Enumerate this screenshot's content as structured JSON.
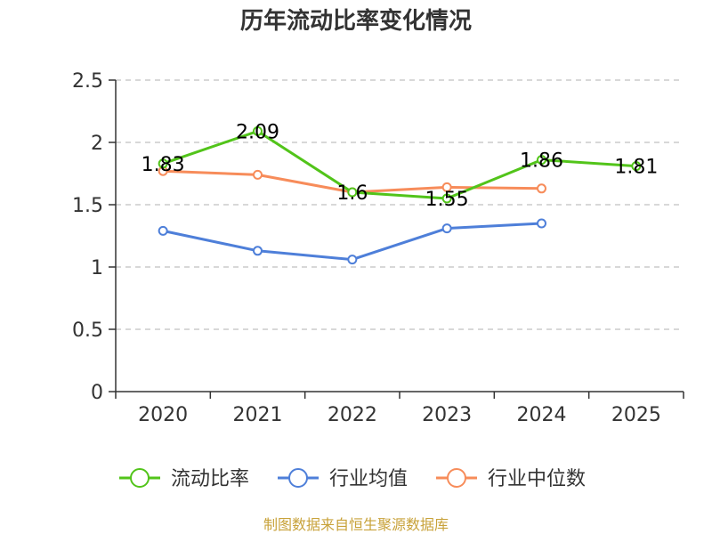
{
  "chart_data": {
    "type": "line",
    "title": "历年流动比率变化情况",
    "categories": [
      "2020",
      "2021",
      "2022",
      "2023",
      "2024",
      "2025"
    ],
    "ylim": [
      0,
      2.5
    ],
    "yticks": [
      "0",
      "0.5",
      "1",
      "1.5",
      "2",
      "2.5"
    ],
    "ytick_values": [
      0,
      0.5,
      1,
      1.5,
      2,
      2.5
    ],
    "grid": true,
    "legend_position": "bottom",
    "series": [
      {
        "name": "流动比率",
        "color": "#52c41a",
        "values": [
          1.83,
          2.09,
          1.6,
          1.55,
          1.86,
          1.81
        ],
        "labels": [
          "1.83",
          "2.09",
          "1.6",
          "1.55",
          "1.86",
          "1.81"
        ]
      },
      {
        "name": "行业均值",
        "color": "#4e7fd9",
        "values": [
          1.29,
          1.13,
          1.06,
          1.31,
          1.35,
          null
        ]
      },
      {
        "name": "行业中位数",
        "color": "#f78c5a",
        "values": [
          1.77,
          1.74,
          1.6,
          1.64,
          1.63,
          null
        ]
      }
    ]
  },
  "footer": {
    "source": "制图数据来自恒生聚源数据库"
  }
}
